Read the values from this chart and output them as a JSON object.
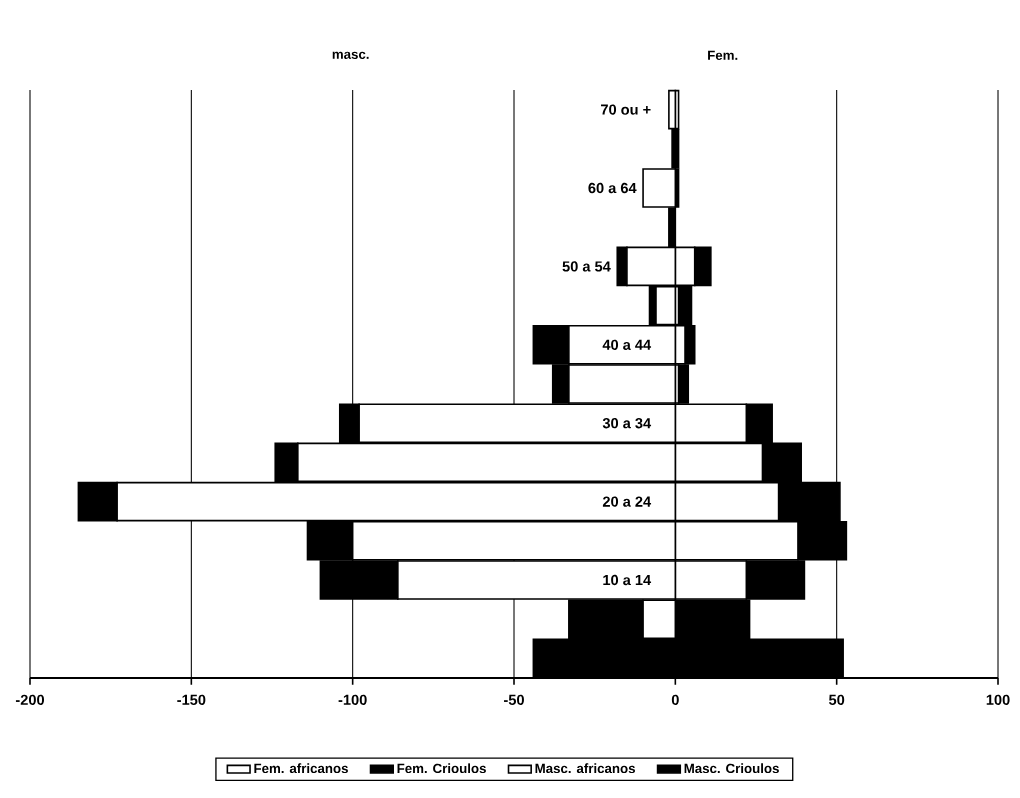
{
  "chart_data": {
    "type": "bar",
    "orientation": "horizontal",
    "stacked": true,
    "annotations": [
      "masc.",
      "Fem."
    ],
    "categories": [
      "70 ou +",
      null,
      "60 a 64",
      null,
      "50 a 54",
      null,
      "40 a 44",
      null,
      "30 a 34",
      null,
      "20 a 24",
      null,
      "10 a 14",
      null,
      null
    ],
    "series": [
      {
        "name": "Fem. africanos",
        "color": "#ffffff",
        "values": [
          1,
          0,
          0,
          0,
          6,
          1,
          3,
          1,
          22,
          27,
          32,
          38,
          22,
          0,
          0
        ]
      },
      {
        "name": "Fem. Crioulos",
        "color": "#000000",
        "values": [
          0,
          1,
          1,
          0,
          5,
          4,
          3,
          3,
          8,
          12,
          19,
          15,
          18,
          23,
          52
        ]
      },
      {
        "name": "Masc. africanos",
        "color": "#ffffff",
        "values": [
          -2,
          0,
          -10,
          0,
          -15,
          -6,
          -33,
          -33,
          -98,
          -117,
          -173,
          -100,
          -86,
          -10,
          0
        ]
      },
      {
        "name": "Masc. Crioulos",
        "color": "#000000",
        "values": [
          0,
          -1,
          0,
          -2,
          -3,
          -2,
          -11,
          -5,
          -6,
          -7,
          -12,
          -14,
          -24,
          -23,
          -44
        ]
      }
    ],
    "xlim": [
      -200,
      100
    ],
    "xticks": [
      -200,
      -150,
      -100,
      -50,
      0,
      50,
      100
    ],
    "grid": "x",
    "legend": "bottom"
  }
}
